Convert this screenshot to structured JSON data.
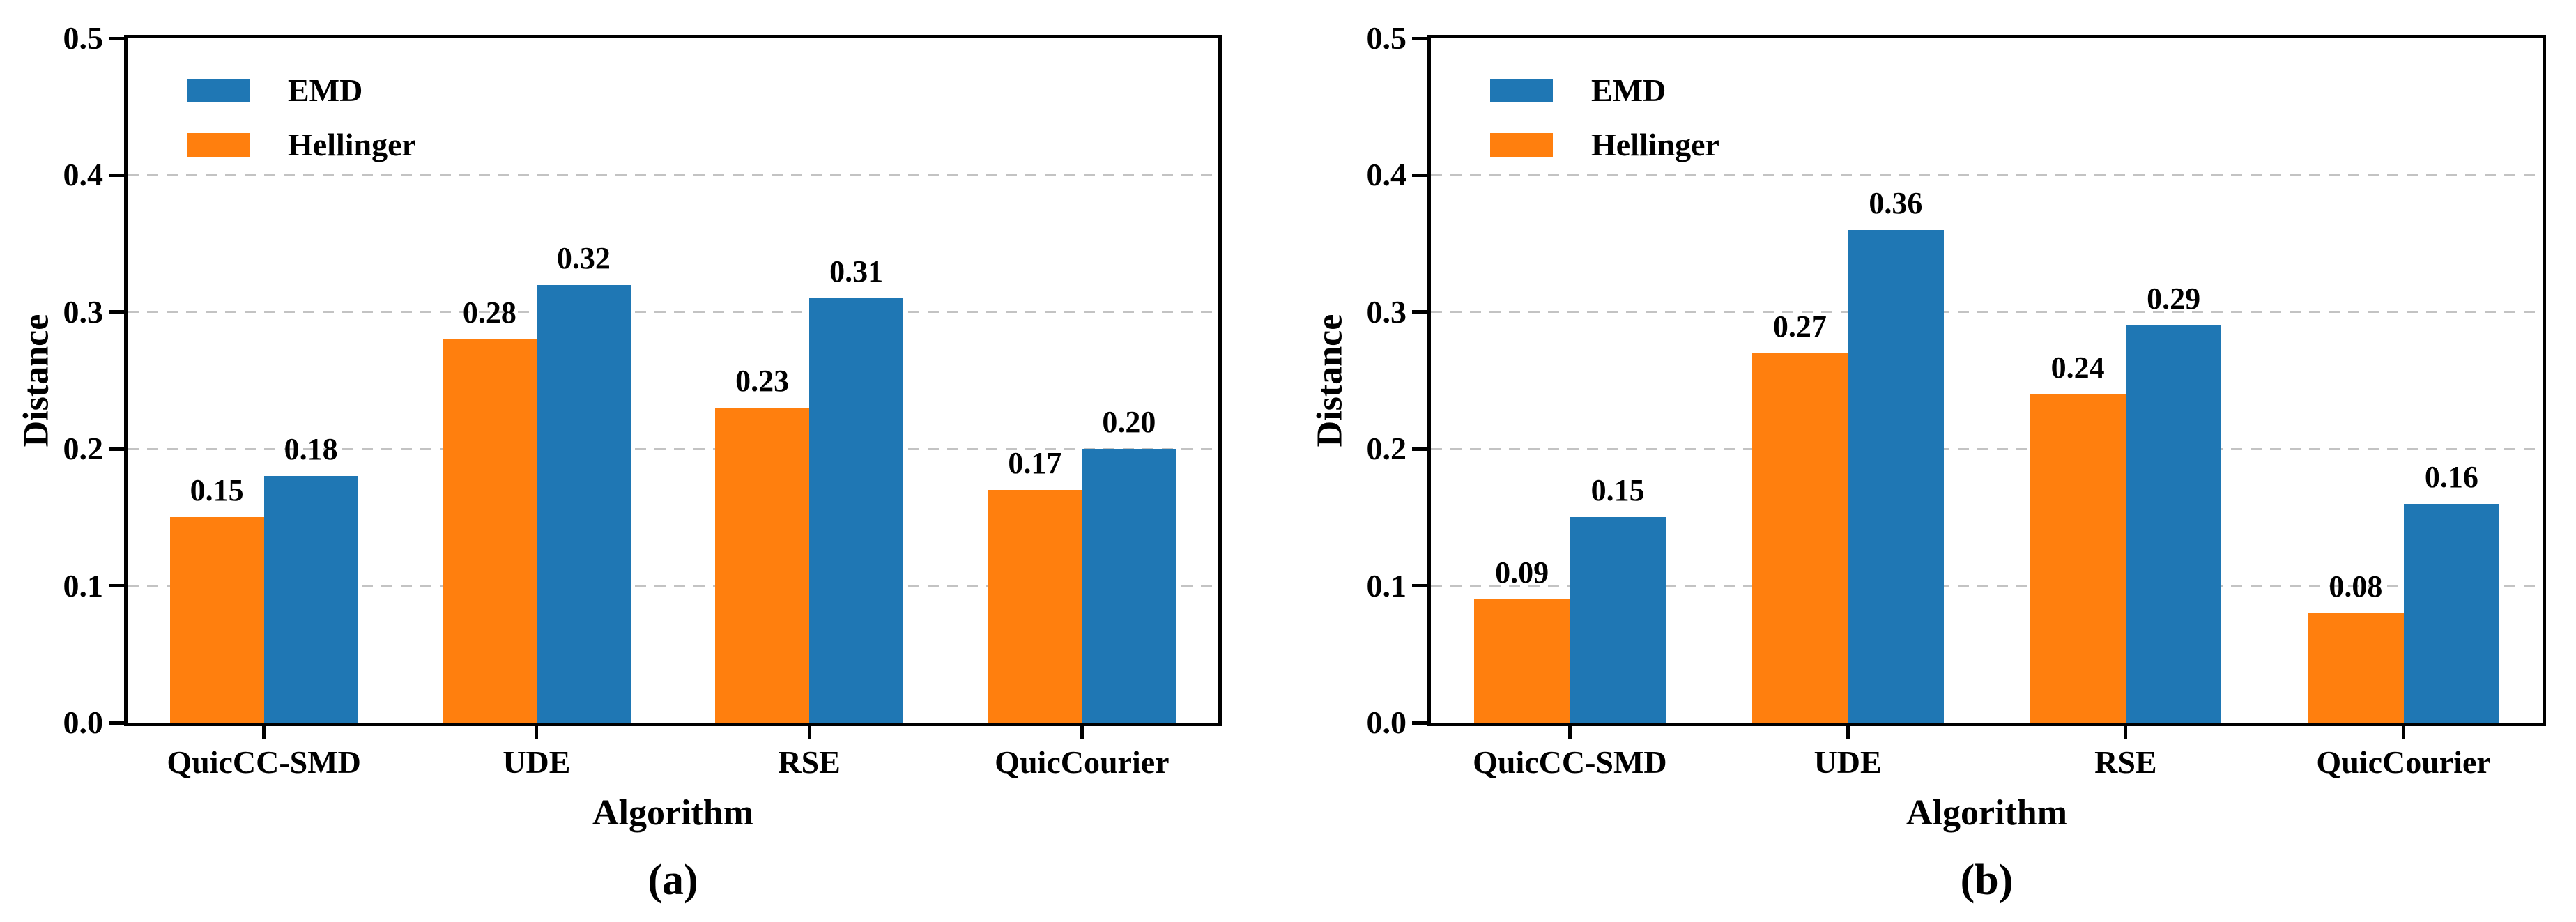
{
  "figure": {
    "background": "#ffffff",
    "text_color": "#000000",
    "grid_color": "#c3c3c3",
    "axis_color": "#000000",
    "series_colors": {
      "EMD": "#1f77b4",
      "Hellinger": "#ff7f0e"
    }
  },
  "chart_data": [
    {
      "type": "bar",
      "panel_label": "(a)",
      "xlabel": "Algorithm",
      "ylabel": "Distance",
      "ylim": [
        0.0,
        0.5
      ],
      "yticks": [
        "0.0",
        "0.1",
        "0.2",
        "0.3",
        "0.4",
        "0.5"
      ],
      "grid": "horizontal dashed lines at 0.1, 0.2, 0.3, 0.4",
      "legend_position": "upper left",
      "legend": [
        {
          "label": "EMD",
          "color": "#1f77b4"
        },
        {
          "label": "Hellinger",
          "color": "#ff7f0e"
        }
      ],
      "categories": [
        "QuicCC-SMD",
        "UDE",
        "RSE",
        "QuicCourier"
      ],
      "series": [
        {
          "name": "Hellinger",
          "color": "#ff7f0e",
          "values": [
            0.15,
            0.28,
            0.23,
            0.17
          ],
          "value_labels": [
            "0.15",
            "0.28",
            "0.23",
            "0.17"
          ]
        },
        {
          "name": "EMD",
          "color": "#1f77b4",
          "values": [
            0.18,
            0.32,
            0.31,
            0.2
          ],
          "value_labels": [
            "0.18",
            "0.32",
            "0.31",
            "0.20"
          ]
        }
      ]
    },
    {
      "type": "bar",
      "panel_label": "(b)",
      "xlabel": "Algorithm",
      "ylabel": "Distance",
      "ylim": [
        0.0,
        0.5
      ],
      "yticks": [
        "0.0",
        "0.1",
        "0.2",
        "0.3",
        "0.4",
        "0.5"
      ],
      "grid": "horizontal dashed lines at 0.1, 0.2, 0.3, 0.4",
      "legend_position": "upper left",
      "legend": [
        {
          "label": "EMD",
          "color": "#1f77b4"
        },
        {
          "label": "Hellinger",
          "color": "#ff7f0e"
        }
      ],
      "categories": [
        "QuicCC-SMD",
        "UDE",
        "RSE",
        "QuicCourier"
      ],
      "series": [
        {
          "name": "Hellinger",
          "color": "#ff7f0e",
          "values": [
            0.09,
            0.27,
            0.24,
            0.08
          ],
          "value_labels": [
            "0.09",
            "0.27",
            "0.24",
            "0.08"
          ]
        },
        {
          "name": "EMD",
          "color": "#1f77b4",
          "values": [
            0.15,
            0.36,
            0.29,
            0.16
          ],
          "value_labels": [
            "0.15",
            "0.36",
            "0.29",
            "0.16"
          ]
        }
      ]
    }
  ]
}
